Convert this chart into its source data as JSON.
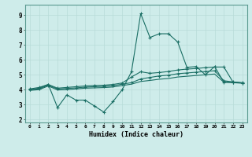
{
  "xlabel": "Humidex (Indice chaleur)",
  "background_color": "#ceecea",
  "grid_color": "#b8dbd8",
  "line_color": "#1a6e64",
  "xlim": [
    -0.5,
    23.5
  ],
  "ylim": [
    1.8,
    9.7
  ],
  "yticks": [
    2,
    3,
    4,
    5,
    6,
    7,
    8,
    9
  ],
  "xtick_labels": [
    "0",
    "1",
    "2",
    "3",
    "4",
    "5",
    "6",
    "7",
    "8",
    "9",
    "10",
    "11",
    "12",
    "13",
    "14",
    "15",
    "16",
    "17",
    "18",
    "19",
    "20",
    "21",
    "22",
    "23"
  ],
  "series1_x": [
    0,
    1,
    2,
    3,
    4,
    5,
    6,
    7,
    8,
    9,
    10,
    11,
    12,
    13,
    14,
    15,
    16,
    17,
    18,
    19,
    20,
    21,
    22,
    23
  ],
  "series1_y": [
    4.0,
    4.1,
    4.35,
    2.8,
    3.65,
    3.3,
    3.3,
    2.9,
    2.5,
    3.2,
    4.0,
    5.2,
    9.1,
    7.5,
    7.75,
    7.75,
    7.2,
    5.5,
    5.55,
    5.0,
    5.55,
    4.5,
    4.5,
    4.45
  ],
  "series2_x": [
    0,
    1,
    2,
    3,
    4,
    5,
    6,
    7,
    8,
    9,
    10,
    11,
    12,
    13,
    14,
    15,
    16,
    17,
    18,
    19,
    20,
    21,
    22,
    23
  ],
  "series2_y": [
    4.05,
    4.15,
    4.35,
    4.1,
    4.15,
    4.2,
    4.25,
    4.28,
    4.3,
    4.35,
    4.45,
    4.85,
    5.2,
    5.1,
    5.15,
    5.22,
    5.32,
    5.38,
    5.42,
    5.48,
    5.52,
    5.52,
    4.5,
    4.45
  ],
  "series3_x": [
    0,
    1,
    2,
    3,
    4,
    5,
    6,
    7,
    8,
    9,
    10,
    11,
    12,
    13,
    14,
    15,
    16,
    17,
    18,
    19,
    20,
    21,
    22,
    23
  ],
  "series3_y": [
    4.0,
    4.05,
    4.3,
    4.05,
    4.08,
    4.12,
    4.17,
    4.2,
    4.22,
    4.27,
    4.37,
    4.47,
    4.72,
    4.82,
    4.92,
    4.97,
    5.07,
    5.12,
    5.17,
    5.22,
    5.27,
    4.6,
    4.52,
    4.47
  ],
  "series4_x": [
    0,
    1,
    2,
    3,
    4,
    5,
    6,
    7,
    8,
    9,
    10,
    11,
    12,
    13,
    14,
    15,
    16,
    17,
    18,
    19,
    20,
    21,
    22,
    23
  ],
  "series4_y": [
    3.95,
    4.0,
    4.25,
    3.98,
    4.0,
    4.05,
    4.1,
    4.12,
    4.14,
    4.18,
    4.28,
    4.37,
    4.55,
    4.62,
    4.7,
    4.75,
    4.85,
    4.9,
    4.95,
    5.0,
    5.05,
    4.5,
    4.47,
    4.43
  ]
}
